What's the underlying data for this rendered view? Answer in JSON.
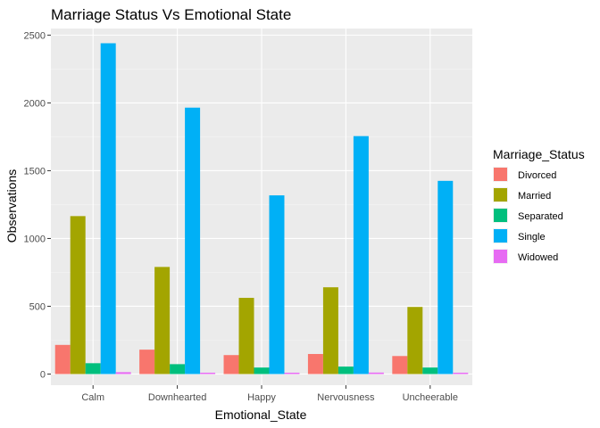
{
  "chart_data": {
    "type": "bar",
    "title": "Marriage Status Vs Emotional State",
    "xlabel": "Emotional_State",
    "ylabel": "Observations",
    "categories": [
      "Calm",
      "Downhearted",
      "Happy",
      "Nervousness",
      "Uncheerable"
    ],
    "ylim": [
      0,
      2550
    ],
    "yticks": [
      0,
      500,
      1000,
      1500,
      2000,
      2500
    ],
    "grid": true,
    "legend_title": "Marriage_Status",
    "legend_position": "right",
    "series": [
      {
        "name": "Divorced",
        "color": "#F8766D",
        "values": [
          215,
          180,
          140,
          148,
          133
        ]
      },
      {
        "name": "Married",
        "color": "#A3A500",
        "values": [
          1165,
          790,
          562,
          640,
          495
        ]
      },
      {
        "name": "Separated",
        "color": "#00BF7D",
        "values": [
          80,
          73,
          48,
          55,
          48
        ]
      },
      {
        "name": "Single",
        "color": "#00B0F6",
        "values": [
          2440,
          1965,
          1318,
          1755,
          1425
        ]
      },
      {
        "name": "Widowed",
        "color": "#E76BF3",
        "values": [
          14,
          10,
          10,
          11,
          10
        ]
      }
    ]
  }
}
